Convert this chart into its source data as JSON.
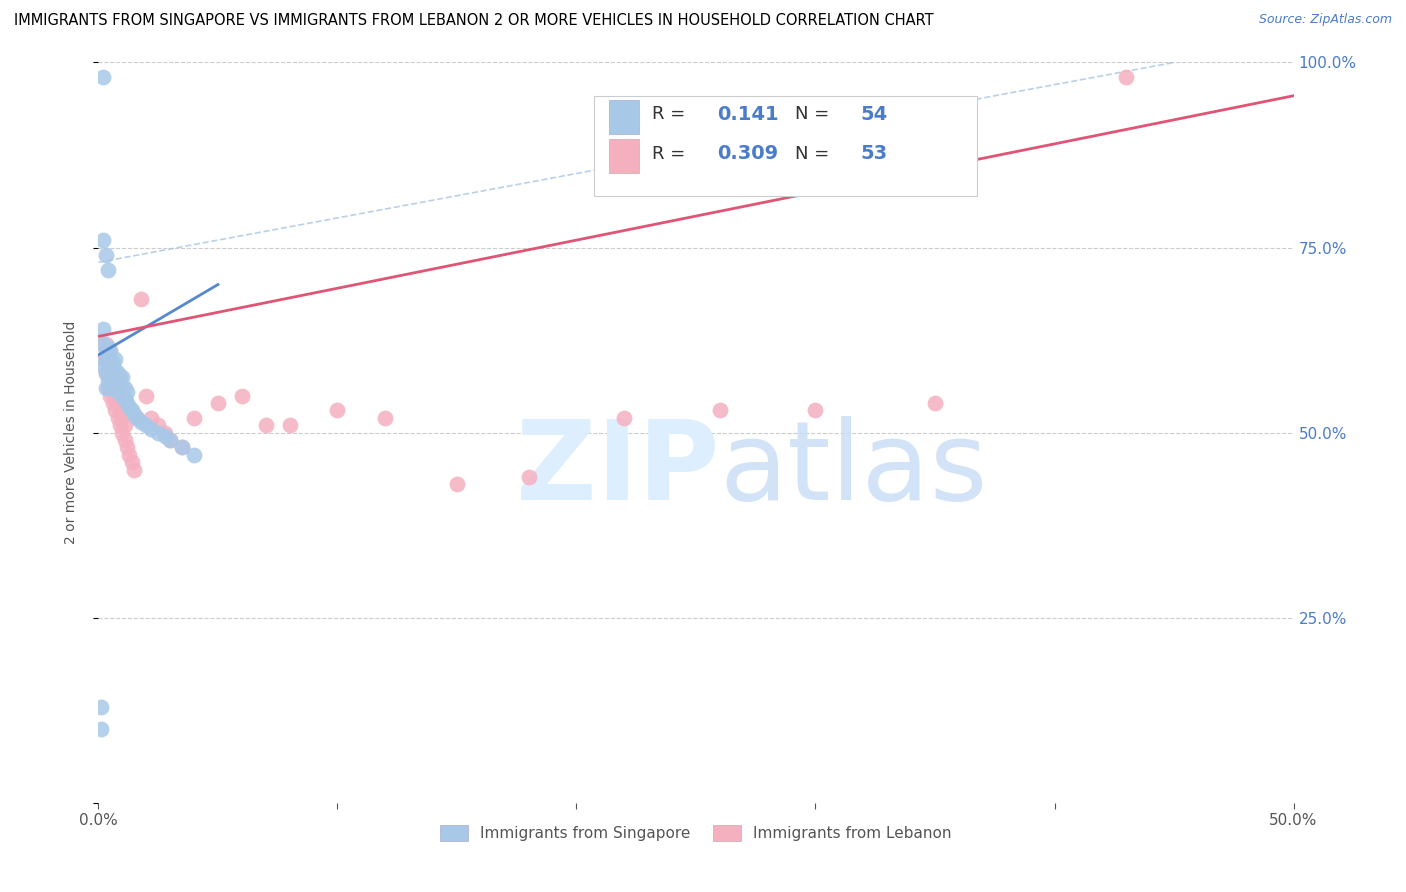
{
  "title": "IMMIGRANTS FROM SINGAPORE VS IMMIGRANTS FROM LEBANON 2 OR MORE VEHICLES IN HOUSEHOLD CORRELATION CHART",
  "source": "Source: ZipAtlas.com",
  "ylabel": "2 or more Vehicles in Household",
  "xlim": [
    0.0,
    0.5
  ],
  "ylim": [
    0.0,
    1.0
  ],
  "singapore_color": "#a8c8e8",
  "singapore_edge": "#7aafd4",
  "lebanon_color": "#f5b0c0",
  "lebanon_edge": "#e080a0",
  "sg_line_color": "#5588cc",
  "lb_line_color": "#e05575",
  "ref_line_color": "#aac4e0",
  "singapore_R": 0.141,
  "singapore_N": 54,
  "lebanon_R": 0.309,
  "lebanon_N": 53,
  "legend_label_singapore": "Immigrants from Singapore",
  "legend_label_lebanon": "Immigrants from Lebanon",
  "sg_x": [
    0.001,
    0.001,
    0.002,
    0.002,
    0.002,
    0.003,
    0.003,
    0.003,
    0.003,
    0.004,
    0.004,
    0.004,
    0.004,
    0.005,
    0.005,
    0.005,
    0.005,
    0.005,
    0.006,
    0.006,
    0.006,
    0.007,
    0.007,
    0.007,
    0.007,
    0.008,
    0.008,
    0.008,
    0.009,
    0.009,
    0.009,
    0.01,
    0.01,
    0.01,
    0.011,
    0.011,
    0.012,
    0.012,
    0.013,
    0.014,
    0.015,
    0.016,
    0.018,
    0.02,
    0.022,
    0.025,
    0.028,
    0.03,
    0.035,
    0.04,
    0.002,
    0.002,
    0.003,
    0.004
  ],
  "sg_y": [
    0.1,
    0.13,
    0.59,
    0.62,
    0.64,
    0.56,
    0.58,
    0.6,
    0.61,
    0.57,
    0.59,
    0.6,
    0.615,
    0.56,
    0.575,
    0.59,
    0.6,
    0.61,
    0.57,
    0.58,
    0.595,
    0.56,
    0.575,
    0.585,
    0.6,
    0.555,
    0.568,
    0.58,
    0.555,
    0.565,
    0.575,
    0.55,
    0.56,
    0.575,
    0.545,
    0.56,
    0.54,
    0.555,
    0.535,
    0.53,
    0.525,
    0.52,
    0.515,
    0.51,
    0.505,
    0.5,
    0.495,
    0.49,
    0.48,
    0.47,
    0.98,
    0.76,
    0.74,
    0.72
  ],
  "lb_x": [
    0.002,
    0.002,
    0.003,
    0.003,
    0.003,
    0.004,
    0.004,
    0.004,
    0.005,
    0.005,
    0.005,
    0.005,
    0.006,
    0.006,
    0.006,
    0.007,
    0.007,
    0.007,
    0.008,
    0.008,
    0.008,
    0.009,
    0.009,
    0.01,
    0.01,
    0.011,
    0.011,
    0.012,
    0.013,
    0.014,
    0.015,
    0.016,
    0.018,
    0.02,
    0.022,
    0.025,
    0.028,
    0.03,
    0.035,
    0.04,
    0.05,
    0.06,
    0.07,
    0.08,
    0.1,
    0.12,
    0.15,
    0.18,
    0.22,
    0.26,
    0.3,
    0.35,
    0.43
  ],
  "lb_y": [
    0.6,
    0.62,
    0.58,
    0.6,
    0.62,
    0.56,
    0.58,
    0.6,
    0.55,
    0.57,
    0.59,
    0.61,
    0.54,
    0.56,
    0.58,
    0.53,
    0.55,
    0.57,
    0.52,
    0.54,
    0.56,
    0.51,
    0.53,
    0.5,
    0.52,
    0.49,
    0.51,
    0.48,
    0.47,
    0.46,
    0.45,
    0.52,
    0.68,
    0.55,
    0.52,
    0.51,
    0.5,
    0.49,
    0.48,
    0.52,
    0.54,
    0.55,
    0.51,
    0.51,
    0.53,
    0.52,
    0.43,
    0.44,
    0.52,
    0.53,
    0.53,
    0.54,
    0.98
  ],
  "sg_line_x0": 0.0,
  "sg_line_y0": 0.605,
  "sg_line_x1": 0.05,
  "sg_line_y1": 0.7,
  "lb_line_x0": 0.0,
  "lb_line_y0": 0.63,
  "lb_line_x1": 0.5,
  "lb_line_y1": 0.955,
  "ref_line_x0": 0.0,
  "ref_line_y0": 0.73,
  "ref_line_x1": 0.45,
  "ref_line_y1": 1.0
}
